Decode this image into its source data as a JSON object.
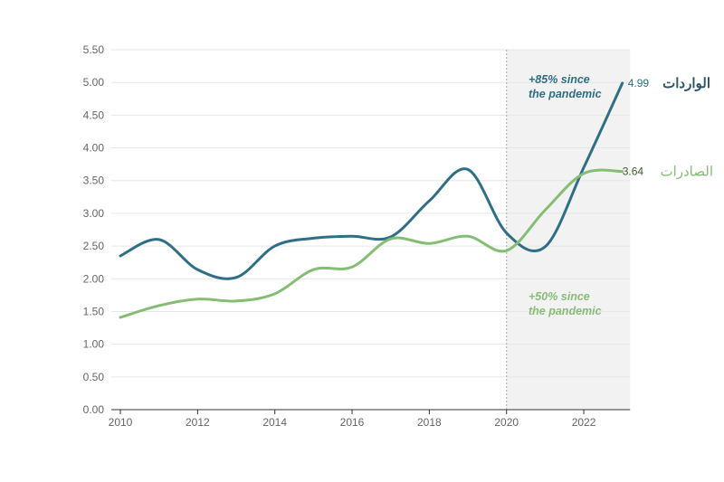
{
  "chart_data": {
    "type": "line",
    "title": "",
    "xlabel": "",
    "ylabel": "",
    "x": [
      2010,
      2011,
      2012,
      2013,
      2014,
      2015,
      2016,
      2017,
      2018,
      2019,
      2020,
      2021,
      2022,
      2023
    ],
    "xticks": [
      "2010",
      "2012",
      "2014",
      "2016",
      "2018",
      "2020",
      "2022"
    ],
    "yticks": [
      "0.00",
      "0.50",
      "1.00",
      "1.50",
      "2.00",
      "2.50",
      "3.00",
      "3.50",
      "4.00",
      "4.50",
      "5.00",
      "5.50"
    ],
    "xlim": [
      2010,
      2023.2
    ],
    "ylim": [
      0,
      5.5
    ],
    "grid": true,
    "shaded_region": {
      "from": 2020,
      "to": 2023.2,
      "color": "#f2f2f2"
    },
    "series": [
      {
        "name": "الواردات",
        "color": "#2e6f87",
        "end_label": "4.99",
        "values": [
          2.35,
          2.6,
          2.14,
          2.02,
          2.5,
          2.62,
          2.65,
          2.64,
          3.19,
          3.67,
          2.7,
          2.49,
          3.7,
          4.99
        ]
      },
      {
        "name": "الصادرات",
        "color": "#86bd74",
        "end_label": "3.64",
        "values": [
          1.41,
          1.59,
          1.69,
          1.66,
          1.77,
          2.14,
          2.18,
          2.61,
          2.54,
          2.65,
          2.43,
          3.05,
          3.61,
          3.64
        ]
      }
    ],
    "annotations": [
      {
        "lines": [
          "+85% since",
          "the pandemic"
        ],
        "color": "#2e6f87"
      },
      {
        "lines": [
          "+50% since",
          "the pandemic"
        ],
        "color": "#86bd74"
      }
    ]
  }
}
